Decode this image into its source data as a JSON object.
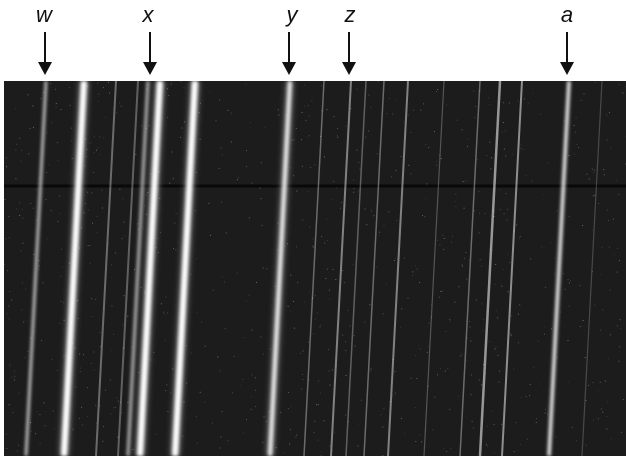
{
  "figure": {
    "background_color": "#1c1c1c",
    "line_color": "#ffffff",
    "markers": [
      {
        "id": "w",
        "label": "w"
      },
      {
        "id": "x",
        "label": "x"
      },
      {
        "id": "y",
        "label": "y"
      },
      {
        "id": "z",
        "label": "z"
      },
      {
        "id": "a",
        "label": "a"
      }
    ]
  }
}
